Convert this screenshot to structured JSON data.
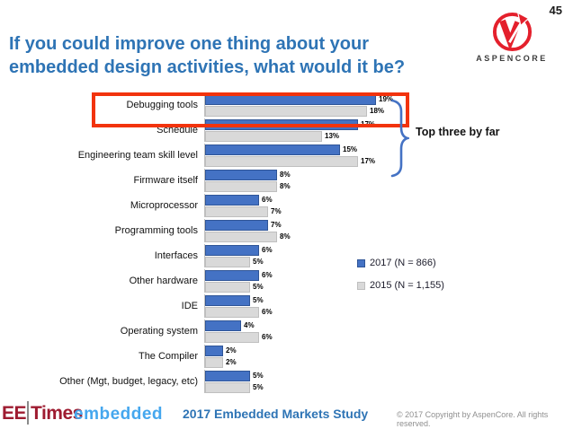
{
  "page": {
    "number": "45"
  },
  "header": {
    "title_lines": [
      "If you could improve one thing about your",
      "embedded design activities, what would it be?"
    ]
  },
  "logos": {
    "aspencore": "ASPENCORE",
    "aspencore_icon": "red-ring-with-v-arrow",
    "eetimes_ee": "EE",
    "eetimes_times": "Times",
    "embedded": "embedded"
  },
  "chart_data": {
    "type": "bar",
    "orientation": "horizontal",
    "title": "",
    "categories": [
      "Debugging tools",
      "Schedule",
      "Engineering team skill level",
      "Firmware itself",
      "Microprocessor",
      "Programming tools",
      "Interfaces",
      "Other hardware",
      "IDE",
      "Operating system",
      "The Compiler",
      "Other (Mgt, budget, legacy, etc)"
    ],
    "series": [
      {
        "name": "2017 (N = 866)",
        "color": "#4472C4",
        "border": "#2F5597",
        "values": [
          19,
          17,
          15,
          8,
          6,
          7,
          6,
          6,
          5,
          4,
          2,
          5
        ]
      },
      {
        "name": "2015 (N = 1,155)",
        "color": "#D9D9D9",
        "border": "#BFBFBF",
        "values": [
          18,
          13,
          17,
          8,
          7,
          8,
          5,
          5,
          6,
          6,
          2,
          5
        ]
      }
    ],
    "value_suffix": "%",
    "xlim": [
      0,
      20
    ],
    "grid": false,
    "legend_position": "right-middle",
    "annotation": "Top three by far",
    "highlight_category": "Debugging tools"
  },
  "footer": {
    "study": "2017 Embedded Markets Study",
    "copyright": "© 2017 Copyright by AspenCore. All rights reserved."
  },
  "colors": {
    "title": "#2E74B5",
    "bar_2017": "#4472C4",
    "bar_2015": "#D9D9D9",
    "highlight_box": "#F2330D",
    "brace": "#4472C4",
    "eetimes": "#9E1B30",
    "embedded": "#45A7EE",
    "aspencore_red": "#E4202C"
  }
}
